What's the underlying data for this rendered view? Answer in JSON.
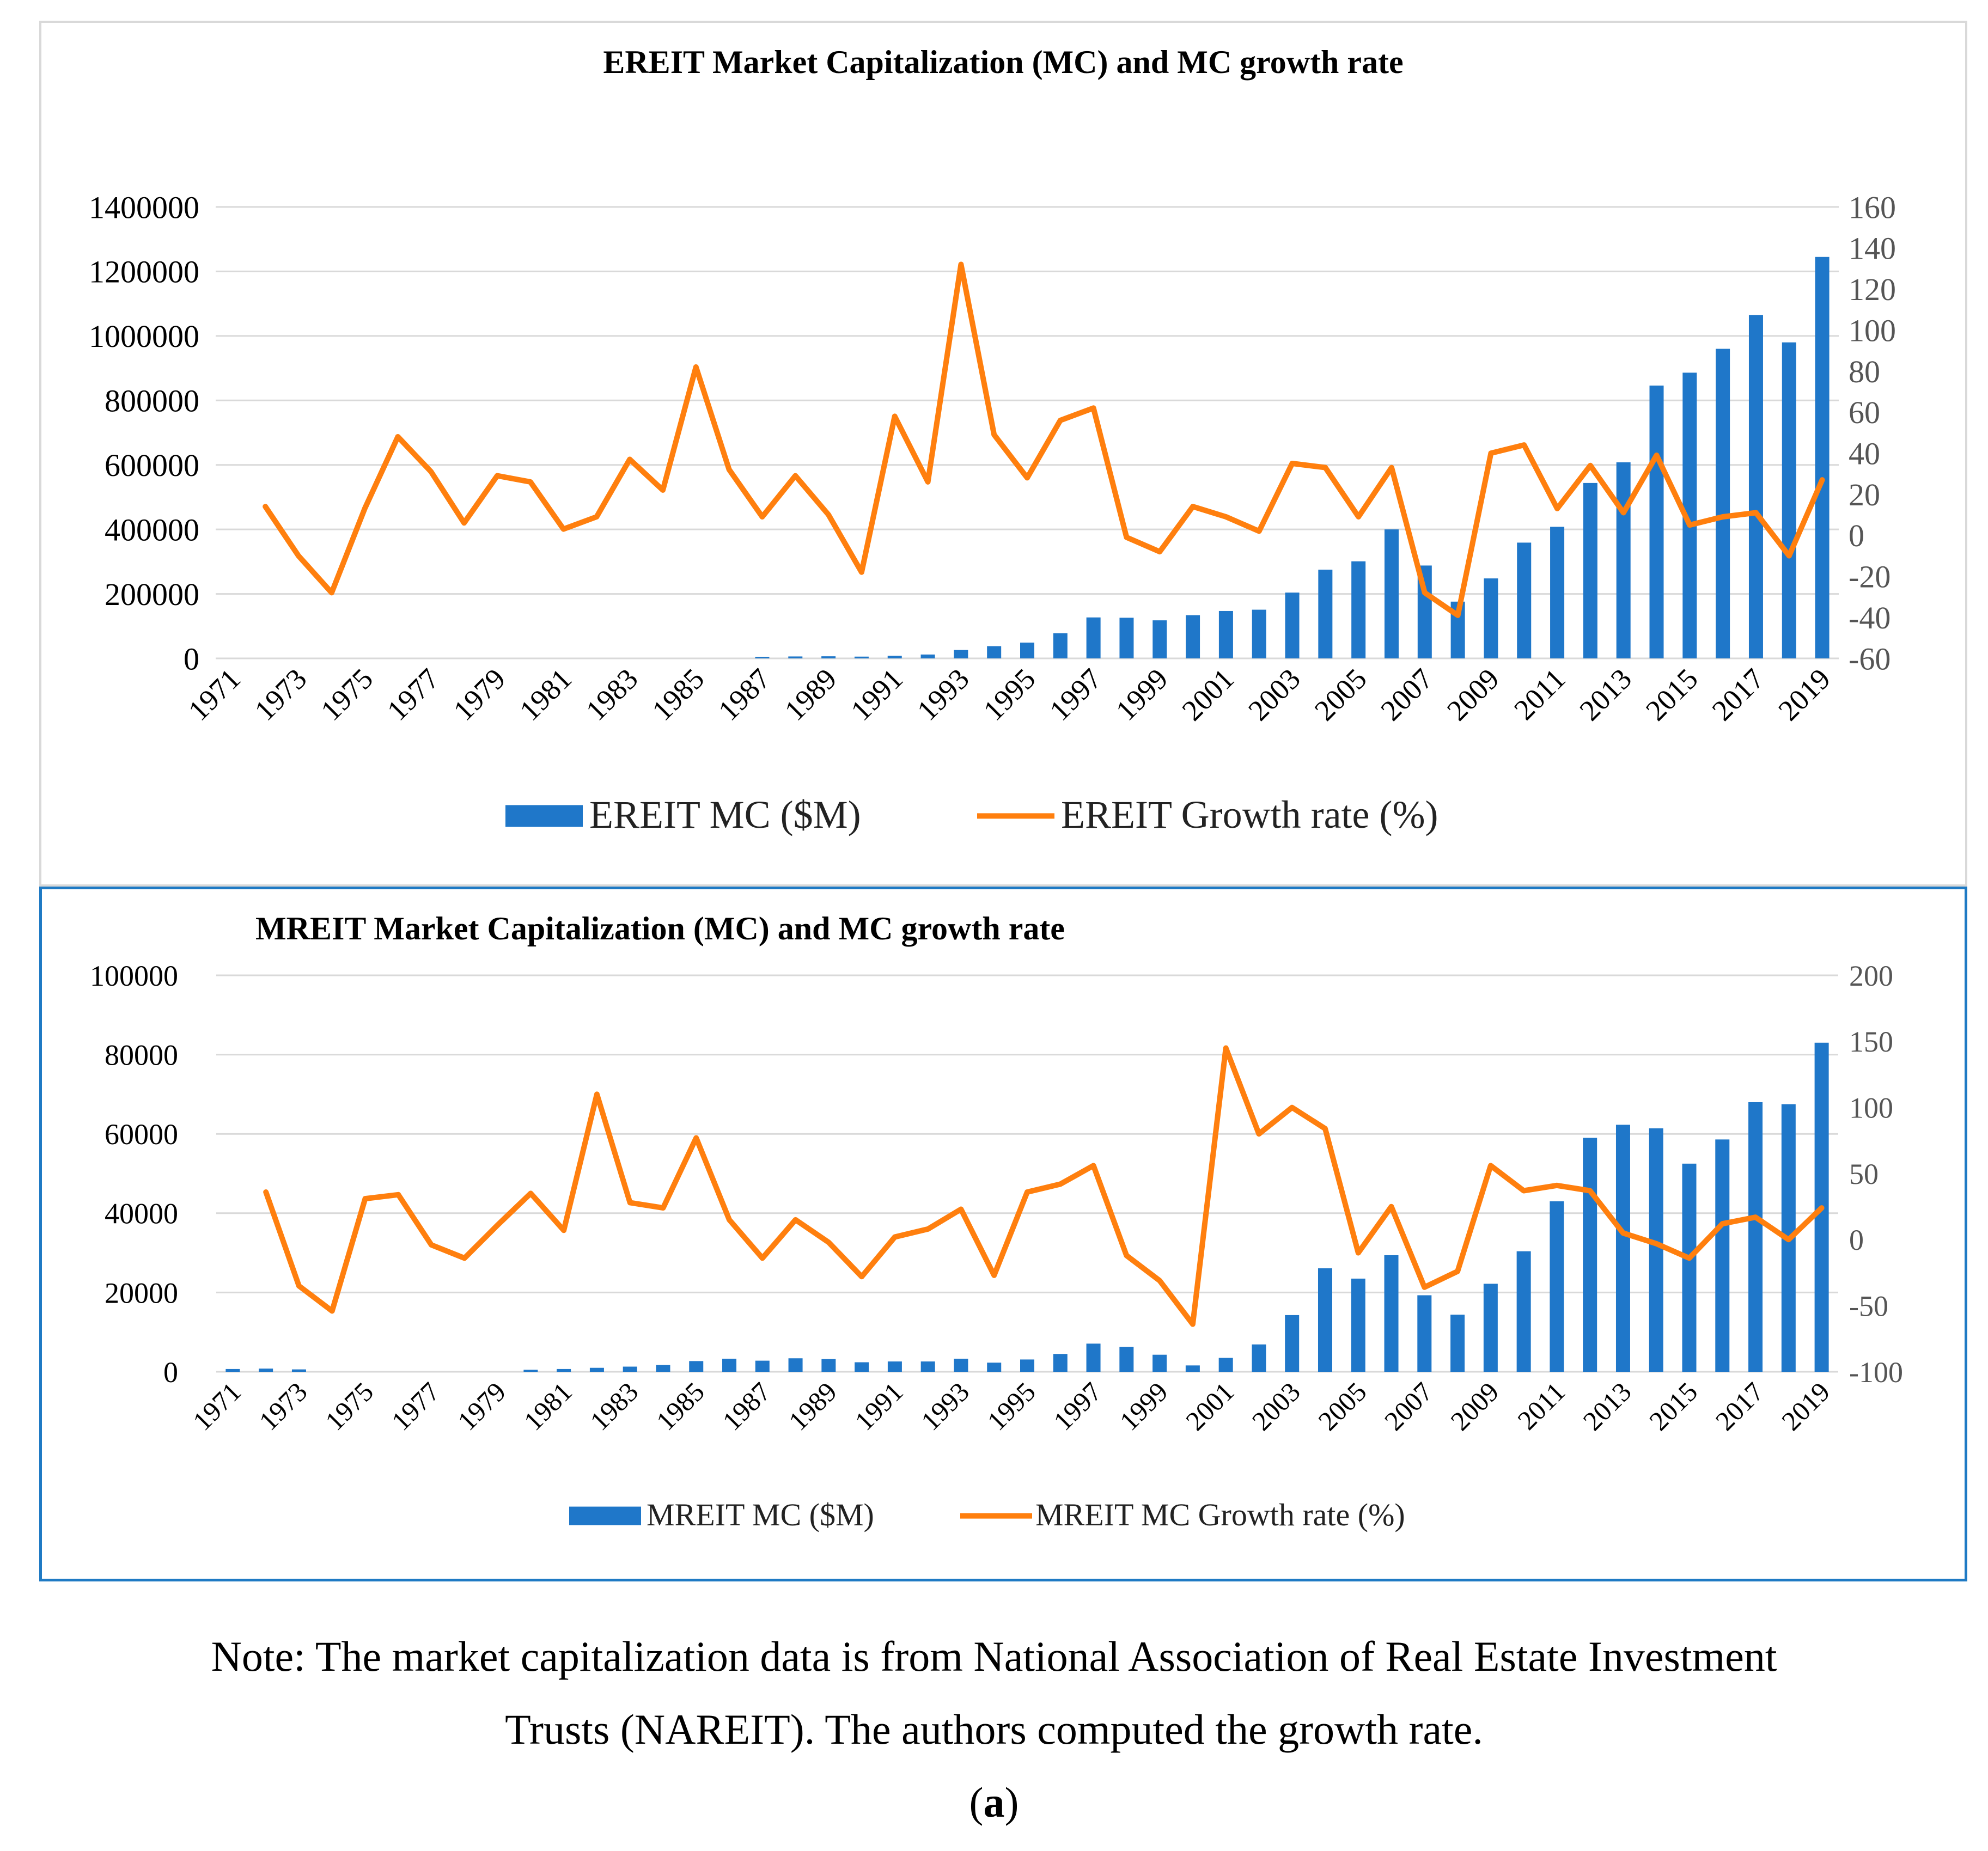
{
  "charts": [
    {
      "title": "EREIT Market Capitalization (MC) and MC growth rate",
      "left_ticks": [
        "0",
        "200000",
        "400000",
        "600000",
        "800000",
        "1000000",
        "1200000",
        "1400000"
      ],
      "right_ticks": [
        "-60",
        "-40",
        "-20",
        "0",
        "20",
        "40",
        "60",
        "80",
        "100",
        "120",
        "140",
        "160"
      ],
      "x_ticks": [
        "1971",
        "1973",
        "1975",
        "1977",
        "1979",
        "1981",
        "1983",
        "1985",
        "1987",
        "1989",
        "1991",
        "1993",
        "1995",
        "1997",
        "1999",
        "2001",
        "2003",
        "2005",
        "2007",
        "2009",
        "2011",
        "2013",
        "2015",
        "2017",
        "2019"
      ],
      "legend_bar": "EREIT MC ($M)",
      "legend_line": "EREIT Growth rate (%)"
    },
    {
      "title": "MREIT Market Capitalization (MC) and MC growth rate",
      "left_ticks": [
        "0",
        "20000",
        "40000",
        "60000",
        "80000",
        "100000"
      ],
      "right_ticks": [
        "-100",
        "-50",
        "0",
        "50",
        "100",
        "150",
        "200"
      ],
      "x_ticks": [
        "1971",
        "1973",
        "1975",
        "1977",
        "1979",
        "1981",
        "1983",
        "1985",
        "1987",
        "1989",
        "1991",
        "1993",
        "1995",
        "1997",
        "1999",
        "2001",
        "2003",
        "2005",
        "2007",
        "2009",
        "2011",
        "2013",
        "2015",
        "2017",
        "2019"
      ],
      "legend_bar": "MREIT MC ($M)",
      "legend_line": "MREIT MC Growth rate (%)"
    }
  ],
  "colors": {
    "bar": "#1f77c9",
    "line": "#ff7f0e",
    "grid": "#d9d9d9",
    "frame_mreit": "#1f7ac4"
  },
  "caption": {
    "line1": "Note: The market capitalization data is from National Association of Real Estate Investment",
    "line2": "Trusts (NAREIT). The authors computed the growth rate.",
    "label_open": "(",
    "label_letter": "a",
    "label_close": ")"
  },
  "chart_data": [
    {
      "type": "bar+line",
      "title": "EREIT Market Capitalization (MC) and MC growth rate",
      "x": [
        1971,
        1972,
        1973,
        1974,
        1975,
        1976,
        1977,
        1978,
        1979,
        1980,
        1981,
        1982,
        1983,
        1984,
        1985,
        1986,
        1987,
        1988,
        1989,
        1990,
        1991,
        1992,
        1993,
        1994,
        1995,
        1996,
        1997,
        1998,
        1999,
        2000,
        2001,
        2002,
        2003,
        2004,
        2005,
        2006,
        2007,
        2008,
        2009,
        2010,
        2011,
        2012,
        2013,
        2014,
        2015,
        2016,
        2017,
        2018,
        2019
      ],
      "ylim_left": [
        0,
        1400000
      ],
      "ylim_right": [
        -60,
        160
      ],
      "grid": true,
      "legend": "bottom",
      "series": [
        {
          "name": "EREIT MC ($M)",
          "type": "bar",
          "axis": "left",
          "values": [
            0,
            0,
            0,
            0,
            0,
            0,
            0,
            0,
            0,
            0,
            0,
            0,
            0,
            0,
            0,
            0,
            5000,
            6000,
            6500,
            5500,
            8000,
            12000,
            26000,
            38000,
            49000,
            78000,
            127000,
            126000,
            118000,
            134000,
            147000,
            151000,
            204000,
            275000,
            301000,
            400000,
            288000,
            176000,
            248000,
            359000,
            408000,
            544000,
            608000,
            846000,
            886000,
            960000,
            1065000,
            980000,
            1245000
          ]
        },
        {
          "name": "EREIT Growth rate (%)",
          "type": "line",
          "axis": "right",
          "values": [
            null,
            14,
            -10,
            -28,
            13,
            48,
            31,
            6,
            29,
            26,
            3,
            9,
            37,
            22,
            82,
            32,
            9,
            29,
            10,
            -18,
            58,
            26,
            132,
            49,
            28,
            56,
            62,
            -1,
            -8,
            14,
            9,
            2,
            35,
            33,
            9,
            33,
            -28,
            -39,
            40,
            44,
            13,
            34,
            11,
            39,
            5,
            9,
            11,
            -10,
            27
          ]
        }
      ]
    },
    {
      "type": "bar+line",
      "title": "MREIT Market Capitalization (MC) and MC growth rate",
      "x": [
        1971,
        1972,
        1973,
        1974,
        1975,
        1976,
        1977,
        1978,
        1979,
        1980,
        1981,
        1982,
        1983,
        1984,
        1985,
        1986,
        1987,
        1988,
        1989,
        1990,
        1991,
        1992,
        1993,
        1994,
        1995,
        1996,
        1997,
        1998,
        1999,
        2000,
        2001,
        2002,
        2003,
        2004,
        2005,
        2006,
        2007,
        2008,
        2009,
        2010,
        2011,
        2012,
        2013,
        2014,
        2015,
        2016,
        2017,
        2018,
        2019
      ],
      "ylim_left": [
        0,
        100000
      ],
      "ylim_right": [
        -100,
        200
      ],
      "grid": true,
      "legend": "bottom",
      "series": [
        {
          "name": "MREIT MC ($M)",
          "type": "bar",
          "axis": "left",
          "values": [
            700,
            800,
            600,
            0,
            0,
            0,
            0,
            0,
            0,
            500,
            700,
            1000,
            1300,
            1700,
            2700,
            3300,
            2800,
            3400,
            3200,
            2400,
            2600,
            2600,
            3300,
            2300,
            3100,
            4500,
            7100,
            6300,
            4300,
            1600,
            3500,
            6900,
            14300,
            26100,
            23500,
            29400,
            19300,
            14400,
            22200,
            30400,
            43000,
            59000,
            62300,
            61400,
            52500,
            58600,
            68000,
            67500,
            83000
          ]
        },
        {
          "name": "MREIT MC Growth rate (%)",
          "type": "line",
          "axis": "right",
          "values": [
            null,
            36,
            -35,
            -54,
            31,
            34,
            -4,
            -14,
            11,
            35,
            7,
            110,
            28,
            24,
            77,
            15,
            -14,
            15,
            -2,
            -28,
            2,
            8,
            23,
            -27,
            36,
            42,
            56,
            -12,
            -31,
            -64,
            145,
            80,
            100,
            84,
            -10,
            25,
            -36,
            -24,
            56,
            37,
            41,
            37,
            5,
            -3,
            -14,
            12,
            17,
            0,
            24
          ]
        }
      ]
    }
  ]
}
